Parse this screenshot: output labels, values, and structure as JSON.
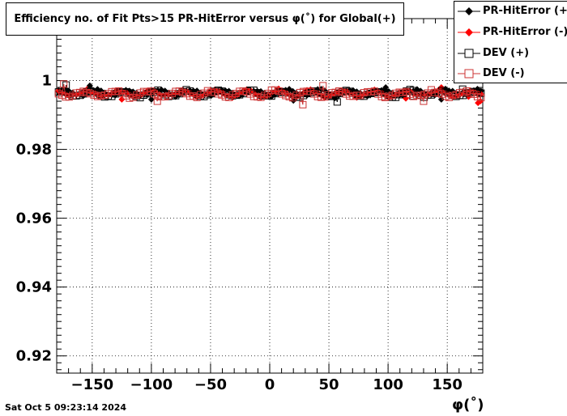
{
  "title": "Efficiency no. of Fit Pts>15 PR-HitError versus φ(˚) for Global(+)",
  "timestamp": "Sat Oct  5 09:23:14 2024",
  "chart_data": {
    "type": "scatter",
    "xlabel": "φ(˚)",
    "ylabel": "",
    "xlim": [
      -180,
      180
    ],
    "ylim": [
      0.915,
      1.018
    ],
    "x_ticks": [
      -150,
      -100,
      -50,
      0,
      50,
      100,
      150
    ],
    "x_tick_labels": [
      "−150",
      "−100",
      "−50",
      "0",
      "50",
      "100",
      "150"
    ],
    "y_ticks": [
      0.92,
      0.94,
      0.96,
      0.98,
      1.0
    ],
    "y_tick_labels": [
      "0.92",
      "0.94",
      "0.96",
      "0.98",
      "1"
    ],
    "grid": true,
    "legend_position": "top-right",
    "series": [
      {
        "name": "PR-HitError (+)",
        "color": "#000000",
        "marker": "filled-diamond",
        "base": 0.9965,
        "amp": 0.0008,
        "phase": 0.4,
        "outliers": [
          [
            -152,
            0.9985
          ],
          [
            -145,
            0.9955
          ],
          [
            -100,
            0.9945
          ],
          [
            20,
            0.9942
          ],
          [
            55,
            0.9949
          ],
          [
            98,
            0.998
          ],
          [
            145,
            0.9945
          ]
        ]
      },
      {
        "name": "PR-HitError (-)",
        "color": "#ff0000",
        "marker": "filled-diamond",
        "base": 0.9963,
        "amp": 0.0009,
        "phase": 2.1,
        "outliers": [
          [
            -125,
            0.9945
          ],
          [
            115,
            0.9948
          ],
          [
            145,
            0.998
          ],
          [
            168,
            0.9953
          ],
          [
            176,
            0.9935
          ],
          [
            178,
            0.994
          ]
        ]
      },
      {
        "name": "DEV (+)",
        "color": "#000000",
        "marker": "open-square",
        "base": 0.9962,
        "amp": 0.0008,
        "phase": 1.3,
        "outliers": [
          [
            -172,
            0.9987
          ],
          [
            57,
            0.9938
          ],
          [
            121,
            0.9955
          ],
          [
            163,
            0.9975
          ]
        ]
      },
      {
        "name": "DEV (-)",
        "color": "#cc3333",
        "marker": "open-square",
        "base": 0.9961,
        "amp": 0.0009,
        "phase": 3.0,
        "outliers": [
          [
            -174,
            0.999
          ],
          [
            -95,
            0.994
          ],
          [
            28,
            0.993
          ],
          [
            45,
            0.9985
          ],
          [
            130,
            0.994
          ]
        ]
      }
    ],
    "n_points": 120
  }
}
